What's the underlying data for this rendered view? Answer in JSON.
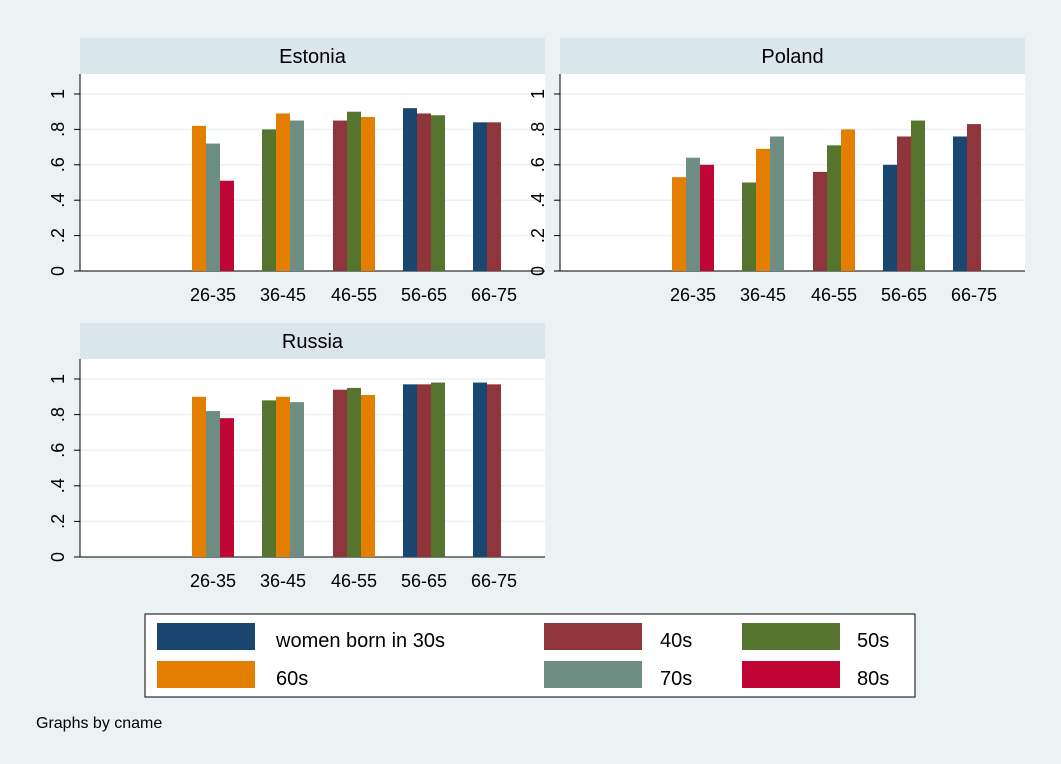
{
  "chart_data": {
    "type": "bar",
    "note": "Graphs by cname",
    "categories": [
      "26-35",
      "36-45",
      "46-55",
      "56-65",
      "66-75"
    ],
    "ylim": [
      0,
      1.1
    ],
    "yticks": [
      0,
      0.2,
      0.4,
      0.6,
      0.8,
      1
    ],
    "ytick_labels": [
      "0",
      ".2",
      ".4",
      ".6",
      ".8",
      "1"
    ],
    "grid": true,
    "legend": {
      "placement": "bottom",
      "entries": [
        "women born in 30s",
        "40s",
        "50s",
        "60s",
        "70s",
        "80s"
      ]
    },
    "series_colors": {
      "30s": "#1a476f",
      "40s": "#90353b",
      "50s": "#55752f",
      "60s": "#e37e00",
      "70s": "#6e8e84",
      "80s": "#c10534"
    },
    "series_order": [
      "30s",
      "40s",
      "50s",
      "60s",
      "70s",
      "80s"
    ],
    "panels": [
      {
        "title": "Estonia",
        "data": {
          "26-35": {
            "60s": 0.82,
            "70s": 0.72,
            "80s": 0.51
          },
          "36-45": {
            "50s": 0.8,
            "60s": 0.89,
            "70s": 0.85
          },
          "46-55": {
            "40s": 0.85,
            "50s": 0.9,
            "60s": 0.87
          },
          "56-65": {
            "30s": 0.92,
            "40s": 0.89,
            "50s": 0.88
          },
          "66-75": {
            "30s": 0.84,
            "40s": 0.84
          }
        }
      },
      {
        "title": "Poland",
        "data": {
          "26-35": {
            "60s": 0.53,
            "70s": 0.64,
            "80s": 0.6
          },
          "36-45": {
            "50s": 0.5,
            "60s": 0.69,
            "70s": 0.76
          },
          "46-55": {
            "40s": 0.56,
            "50s": 0.71,
            "60s": 0.8
          },
          "56-65": {
            "30s": 0.6,
            "40s": 0.76,
            "50s": 0.85
          },
          "66-75": {
            "30s": 0.76,
            "40s": 0.83
          }
        }
      },
      {
        "title": "Russia",
        "data": {
          "26-35": {
            "60s": 0.9,
            "70s": 0.82,
            "80s": 0.78
          },
          "36-45": {
            "50s": 0.88,
            "60s": 0.9,
            "70s": 0.87
          },
          "46-55": {
            "40s": 0.94,
            "50s": 0.95,
            "60s": 0.91
          },
          "56-65": {
            "30s": 0.97,
            "40s": 0.97,
            "50s": 0.98
          },
          "66-75": {
            "30s": 0.98,
            "40s": 0.97
          }
        }
      }
    ]
  }
}
